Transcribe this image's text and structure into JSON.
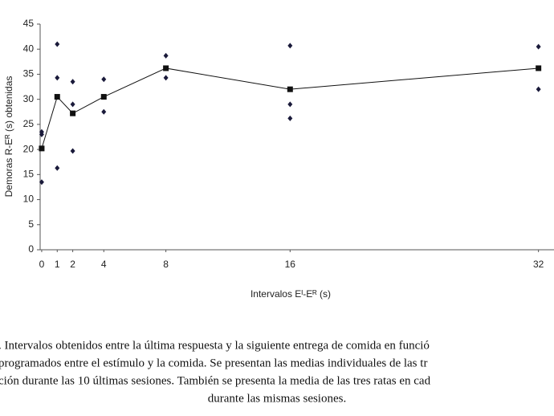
{
  "chart_data": {
    "type": "line",
    "y_label": "Demoras R-Eᴿ (s) obtenidas",
    "x_label": "Intervalos Eᴵ-Eᴿ (s)",
    "xlim": [
      -0.1,
      33
    ],
    "xticks": [
      0,
      1,
      2,
      4,
      8,
      16,
      32
    ],
    "ylim": [
      0,
      45
    ],
    "yticks": [
      0,
      5,
      10,
      15,
      20,
      25,
      30,
      35,
      40,
      45
    ],
    "series": [
      {
        "color": "#111111",
        "marker": "square",
        "line": true,
        "x": [
          0,
          1,
          2,
          4,
          8,
          16,
          32
        ],
        "values": [
          20.2,
          30.5,
          27.2,
          30.5,
          36.2,
          32,
          36.2
        ]
      },
      {
        "color": "#1a1a3a",
        "marker": "diamond",
        "line": false,
        "x": [
          0,
          0,
          0,
          1,
          1,
          1,
          2,
          2,
          2,
          4,
          4,
          8,
          8,
          16,
          16,
          16,
          32,
          32
        ],
        "values": [
          23.5,
          23,
          13.5,
          41,
          34.3,
          16.3,
          33.5,
          29,
          19.7,
          34,
          27.5,
          38.7,
          34.3,
          40.7,
          29,
          26.2,
          40.5,
          32
        ]
      }
    ],
    "caption": [
      ". Intervalos obtenidos entre la última respuesta y la siguiente entrega de comida en funció",
      "programados entre el estímulo y la comida. Se presentan las medias individuales de las tr",
      "ción durante las 10 últimas sesiones. También se presenta la media de las tres ratas en cad",
      "durante las mismas sesiones."
    ]
  }
}
